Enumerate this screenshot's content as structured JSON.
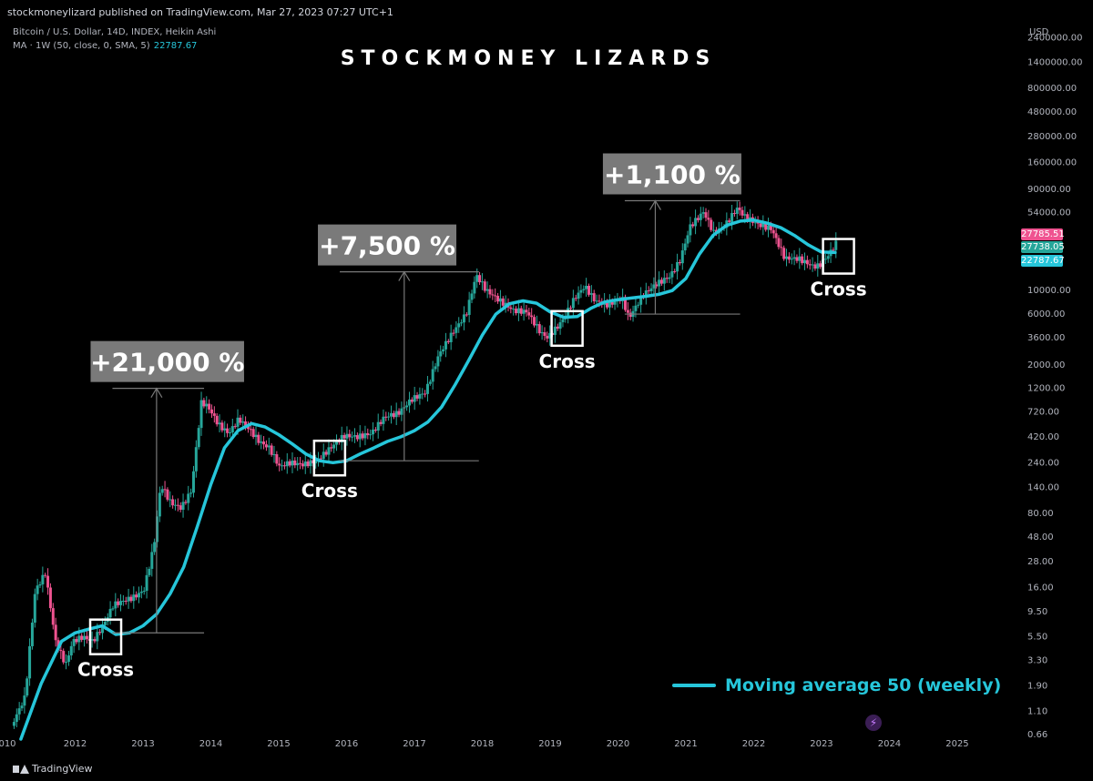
{
  "header": {
    "published": "stockmoneylizard published on TradingView.com, Mar 27, 2023 07:27 UTC+1",
    "symbol": "Bitcoin / U.S. Dollar, 14D, INDEX, Heikin Ashi",
    "ma_label": "MA · 1W (50, close, 0, SMA, 5)",
    "ma_value": "22787.67",
    "brand": "STOCKMONEY LIZARDS",
    "currency": "USD"
  },
  "footer": {
    "logo_text": "TradingView",
    "flash_icon": "lightning-icon"
  },
  "colors": {
    "background": "#000000",
    "up": "#26a69a",
    "down": "#ef5390",
    "ma": "#26c6da",
    "annotation_box": "#787878"
  },
  "chart_data": {
    "type": "line",
    "title": "STOCKMONEY LIZARDS",
    "yscale": "log",
    "ylim": [
      0.6,
      3000000
    ],
    "xlim": [
      2011.0,
      2025.9
    ],
    "x_ticks": [
      "010",
      "2012",
      "2013",
      "2014",
      "2015",
      "2016",
      "2017",
      "2018",
      "2019",
      "2020",
      "2021",
      "2022",
      "2023",
      "2024",
      "2025"
    ],
    "y_ticks": [
      "2400000.00",
      "1400000.00",
      "800000.00",
      "480000.00",
      "280000.00",
      "160000.00",
      "90000.00",
      "54000.00",
      "10000.00",
      "6000.00",
      "3600.00",
      "2000.00",
      "1200.00",
      "720.00",
      "420.00",
      "240.00",
      "140.00",
      "80.00",
      "48.00",
      "28.00",
      "16.00",
      "9.50",
      "5.50",
      "3.30",
      "1.90",
      "1.10",
      "0.66"
    ],
    "price_labels": [
      {
        "value": "27785.51",
        "color": "#ef5390"
      },
      {
        "value": "27738.05",
        "color": "#26a69a"
      },
      {
        "value": "22787.67",
        "color": "#26c6da"
      }
    ],
    "legend": "Moving average 50 (weekly)",
    "series": [
      {
        "name": "Bitcoin / U.S. Dollar",
        "x": [
          2011.1,
          2011.3,
          2011.45,
          2011.6,
          2011.75,
          2011.9,
          2012.0,
          2012.15,
          2012.3,
          2012.45,
          2012.6,
          2012.75,
          2012.9,
          2013.05,
          2013.2,
          2013.3,
          2013.45,
          2013.6,
          2013.75,
          2013.9,
          2014.0,
          2014.15,
          2014.3,
          2014.45,
          2014.6,
          2014.75,
          2014.9,
          2015.05,
          2015.2,
          2015.4,
          2015.6,
          2015.8,
          2016.0,
          2016.2,
          2016.4,
          2016.6,
          2016.8,
          2017.0,
          2017.2,
          2017.4,
          2017.6,
          2017.8,
          2017.95,
          2018.1,
          2018.3,
          2018.5,
          2018.7,
          2018.9,
          2019.0,
          2019.2,
          2019.4,
          2019.55,
          2019.7,
          2019.9,
          2020.1,
          2020.2,
          2020.4,
          2020.6,
          2020.8,
          2020.95,
          2021.1,
          2021.3,
          2021.45,
          2021.6,
          2021.8,
          2021.9,
          2022.1,
          2022.3,
          2022.5,
          2022.7,
          2022.9,
          2023.0,
          2023.15,
          2023.25
        ],
        "y": [
          0.8,
          1.5,
          15,
          22,
          5,
          3,
          5,
          5.5,
          5,
          7,
          11,
          12,
          13,
          15,
          40,
          150,
          100,
          90,
          130,
          900,
          800,
          550,
          450,
          620,
          500,
          380,
          330,
          220,
          240,
          230,
          250,
          330,
          430,
          420,
          450,
          650,
          700,
          950,
          1100,
          2500,
          4000,
          6000,
          14000,
          10000,
          8000,
          6500,
          6300,
          4000,
          3600,
          5000,
          8500,
          11000,
          8000,
          7300,
          8500,
          5500,
          9000,
          11500,
          13500,
          19000,
          40000,
          55000,
          35000,
          40000,
          60000,
          50000,
          42000,
          38000,
          20000,
          20000,
          17000,
          17000,
          22000,
          27785
        ]
      },
      {
        "name": "Moving average 50 (weekly)",
        "x": [
          2011.2,
          2011.5,
          2011.8,
          2012.0,
          2012.2,
          2012.4,
          2012.6,
          2012.8,
          2013.0,
          2013.2,
          2013.4,
          2013.6,
          2013.8,
          2014.0,
          2014.2,
          2014.4,
          2014.6,
          2014.8,
          2015.0,
          2015.2,
          2015.4,
          2015.6,
          2015.8,
          2016.0,
          2016.2,
          2016.4,
          2016.6,
          2016.8,
          2017.0,
          2017.2,
          2017.4,
          2017.6,
          2017.8,
          2018.0,
          2018.2,
          2018.4,
          2018.6,
          2018.8,
          2019.0,
          2019.2,
          2019.4,
          2019.6,
          2019.8,
          2020.0,
          2020.2,
          2020.4,
          2020.6,
          2020.8,
          2021.0,
          2021.2,
          2021.4,
          2021.6,
          2021.8,
          2022.0,
          2022.2,
          2022.4,
          2022.6,
          2022.8,
          2023.0,
          2023.2
        ],
        "y": [
          0.6,
          2,
          5,
          6,
          6.5,
          7,
          5.8,
          6,
          7,
          9,
          14,
          25,
          60,
          150,
          330,
          480,
          560,
          520,
          440,
          360,
          290,
          250,
          240,
          250,
          290,
          330,
          380,
          420,
          480,
          580,
          800,
          1300,
          2200,
          3800,
          6000,
          7500,
          8000,
          7600,
          6300,
          5600,
          5700,
          6800,
          7800,
          8200,
          8500,
          8800,
          9200,
          10000,
          13000,
          22000,
          33000,
          41000,
          45000,
          46000,
          43000,
          39000,
          33000,
          27000,
          23000,
          22787.67
        ]
      }
    ],
    "annotations": [
      {
        "type": "gain",
        "label": "+21,000 %"
      },
      {
        "type": "gain",
        "label": "+7,500 %"
      },
      {
        "type": "gain",
        "label": "+1,100 %"
      },
      {
        "type": "cross",
        "label": "Cross",
        "x": 2012.45,
        "y": 5.5
      },
      {
        "type": "cross",
        "label": "Cross",
        "x": 2015.75,
        "y": 265
      },
      {
        "type": "cross",
        "label": "Cross",
        "x": 2019.25,
        "y": 4400
      },
      {
        "type": "cross",
        "label": "Cross",
        "x": 2023.25,
        "y": 21000
      }
    ],
    "gains": [
      {
        "x": 2013.2,
        "y_from": 6,
        "y_to": 1200,
        "x_from": 2012.55,
        "x_to": 2013.9
      },
      {
        "x": 2016.85,
        "y_from": 250,
        "y_to": 15000,
        "x_from": 2015.9,
        "x_to": 2017.95
      },
      {
        "x": 2020.55,
        "y_from": 6000,
        "y_to": 70000,
        "x_from": 2020.1,
        "x_to": 2021.8
      }
    ]
  }
}
